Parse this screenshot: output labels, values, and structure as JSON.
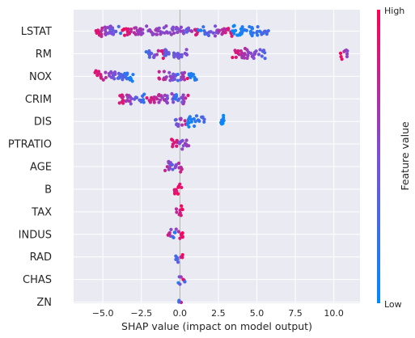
{
  "chart_data": {
    "type": "scatter",
    "subtype": "shap-beeswarm",
    "title": "",
    "xlabel": "SHAP value (impact on model output)",
    "ylabel": "",
    "xlim": [
      -6.9,
      11.7
    ],
    "xticks": [
      -5.0,
      -2.5,
      0.0,
      2.5,
      5.0,
      7.5,
      10.0
    ],
    "xtick_labels": [
      "−5.0",
      "−2.5",
      "0.0",
      "2.5",
      "5.0",
      "7.5",
      "10.0"
    ],
    "grid": true,
    "colorbar": {
      "label": "Feature value",
      "high_label": "High",
      "low_label": "Low",
      "low_color": "#008bfb",
      "high_color": "#ff0052"
    },
    "features": [
      {
        "name": "LSTAT",
        "segments": [
          [
            -5.6,
            -3.8,
            0.95,
            0.2
          ],
          [
            -3.8,
            -2.0,
            0.9,
            0.5
          ],
          [
            -2.0,
            0.3,
            0.6,
            0.55
          ],
          [
            0.3,
            1.2,
            0.3,
            0.9
          ],
          [
            1.2,
            3.4,
            0.08,
            0.95
          ],
          [
            3.4,
            5.8,
            0.05,
            0.3
          ]
        ]
      },
      {
        "name": "RM",
        "segments": [
          [
            -2.2,
            -1.0,
            0.2,
            0.95
          ],
          [
            -1.0,
            0.5,
            0.35,
            0.5
          ],
          [
            3.4,
            5.6,
            0.9,
            0.3
          ],
          [
            10.4,
            10.9,
            1.0,
            0.5
          ]
        ]
      },
      {
        "name": "NOX",
        "segments": [
          [
            -5.6,
            -3.0,
            0.95,
            0.05
          ],
          [
            -1.5,
            -0.2,
            0.9,
            0.4
          ],
          [
            -0.2,
            0.5,
            0.2,
            0.9
          ],
          [
            0.5,
            1.1,
            0.05,
            0.2
          ]
        ]
      },
      {
        "name": "CRIM",
        "segments": [
          [
            -4.0,
            -2.2,
            0.95,
            0.1
          ],
          [
            -2.2,
            -0.3,
            0.9,
            0.45
          ],
          [
            -0.3,
            0.6,
            0.1,
            0.95
          ]
        ]
      },
      {
        "name": "DIS",
        "segments": [
          [
            -0.3,
            0.4,
            0.3,
            0.9
          ],
          [
            0.4,
            1.6,
            0.05,
            0.3
          ],
          [
            2.5,
            2.9,
            0.05,
            0.05
          ]
        ]
      },
      {
        "name": "PTRATIO",
        "segments": [
          [
            -0.6,
            -0.1,
            0.9,
            0.9
          ],
          [
            -0.1,
            0.6,
            0.5,
            0.6
          ]
        ]
      },
      {
        "name": "AGE",
        "segments": [
          [
            -1.0,
            -0.3,
            0.85,
            0.15
          ],
          [
            -0.3,
            0.2,
            0.45,
            0.9
          ]
        ]
      },
      {
        "name": "B",
        "segments": [
          [
            -0.4,
            0.2,
            0.85,
            0.95
          ]
        ]
      },
      {
        "name": "TAX",
        "segments": [
          [
            -0.3,
            0.2,
            0.7,
            0.95
          ]
        ]
      },
      {
        "name": "INDUS",
        "segments": [
          [
            -0.8,
            -0.3,
            0.95,
            0.1
          ],
          [
            -0.3,
            0.2,
            0.6,
            0.95
          ]
        ]
      },
      {
        "name": "RAD",
        "segments": [
          [
            -0.3,
            0.2,
            0.15,
            0.95
          ]
        ]
      },
      {
        "name": "CHAS",
        "segments": [
          [
            -0.1,
            0.15,
            0.1,
            0.95
          ],
          [
            0.2,
            0.35,
            1.0,
            0.05
          ]
        ]
      },
      {
        "name": "ZN",
        "segments": [
          [
            -0.1,
            0.15,
            0.15,
            0.95
          ]
        ]
      }
    ]
  }
}
